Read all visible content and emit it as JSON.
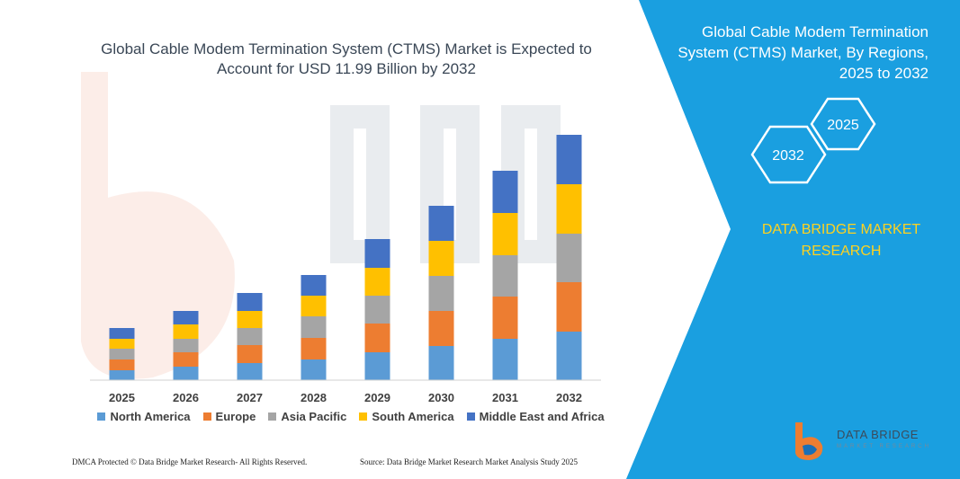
{
  "chart_data": {
    "type": "bar",
    "stacked": true,
    "title": "Global Cable Modem Termination System (CTMS) Market is Expected to Account for USD 11.99 Billion by 2032",
    "categories": [
      "2025",
      "2026",
      "2027",
      "2028",
      "2029",
      "2030",
      "2031",
      "2032"
    ],
    "series": [
      {
        "name": "North America",
        "color": "#5b9bd5",
        "values": [
          11,
          15,
          19,
          23,
          31,
          38,
          46,
          54
        ]
      },
      {
        "name": "Europe",
        "color": "#ed7d31",
        "values": [
          12,
          16,
          20,
          24,
          32,
          39,
          47,
          55
        ]
      },
      {
        "name": "Asia Pacific",
        "color": "#a5a5a5",
        "values": [
          12,
          15,
          19,
          24,
          31,
          39,
          46,
          54
        ]
      },
      {
        "name": "South America",
        "color": "#ffc000",
        "values": [
          11,
          16,
          19,
          23,
          31,
          39,
          47,
          55
        ]
      },
      {
        "name": "Middle East and Africa",
        "color": "#4472c4",
        "values": [
          12,
          15,
          20,
          23,
          32,
          39,
          47,
          55
        ]
      }
    ],
    "xlabel": "",
    "ylabel": "",
    "ylim": [
      0,
      280
    ],
    "grid": false,
    "legend": "bottom"
  },
  "panel": {
    "title": "Global Cable Modem Termination System (CTMS) Market, By Regions, 2025 to 2032",
    "hex_left_label": "2032",
    "hex_right_label": "2025",
    "brand": "DATA BRIDGE MARKET RESEARCH",
    "logo_text": "DATA BRIDGE",
    "logo_sub": "MARKET RESEARCH",
    "bg_color": "#1a9fe0",
    "brand_color": "#ffd21f"
  },
  "footer": {
    "left": "DMCA Protected © Data Bridge Market Research- All Rights Reserved.",
    "right": "Source: Data Bridge Market Research Market Analysis Study 2025"
  }
}
